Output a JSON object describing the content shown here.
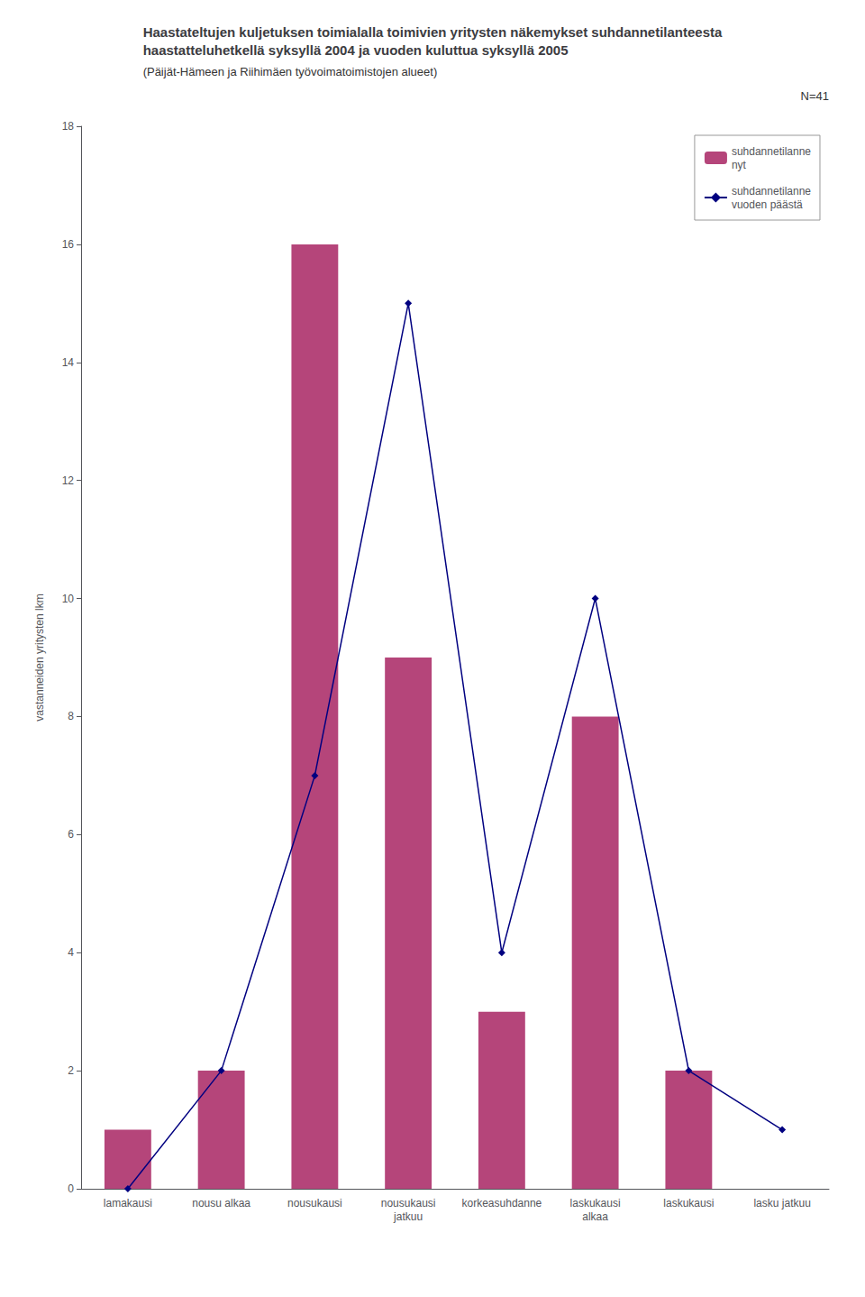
{
  "chart_data": {
    "type": "bar",
    "title": "Haastateltujen kuljetuksen toimialalla toimivien yritysten näkemykset suhdannetilanteesta\nhaastatteluhetkellä syksyllä 2004 ja vuoden kuluttua syksyllä 2005",
    "subtitle": "(Päijät-Hämeen ja Riihimäen työvoimatoimistojen alueet)",
    "annotations": [
      "N=41"
    ],
    "categories": [
      "lamakausi",
      "nousu alkaa",
      "nousukausi",
      "nousukausi\njatkuu",
      "korkeasuhdanne",
      "laskukausi\nalkaa",
      "laskukausi",
      "lasku jatkuu"
    ],
    "series": [
      {
        "name": "suhdannetilanne\nnyt",
        "type": "bar",
        "color": "#b5457a",
        "values": [
          1,
          2,
          16,
          9,
          3,
          8,
          2,
          0
        ]
      },
      {
        "name": "suhdannetilanne\nvuoden päästä",
        "type": "line",
        "color": "#000080",
        "marker": "diamond",
        "line_style": "solid",
        "values": [
          0,
          2,
          7,
          15,
          4,
          10,
          2,
          1
        ]
      }
    ],
    "ylabel": "vastanneiden yritysten lkm",
    "ylim": [
      0,
      18
    ],
    "yticks": [
      0,
      2,
      4,
      6,
      8,
      10,
      12,
      14,
      16,
      18
    ],
    "grid": false,
    "legend": "upper right"
  }
}
